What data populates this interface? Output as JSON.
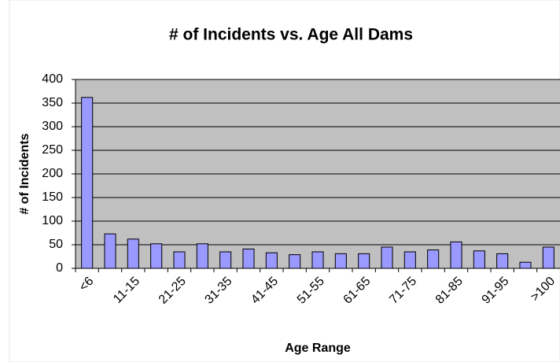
{
  "chart_data": {
    "type": "bar",
    "title": "# of Incidents vs. Age All Dams",
    "x_label": "Age Range",
    "y_label": "# of Incidents",
    "categories": [
      "<6",
      null,
      "11-15",
      null,
      "21-25",
      null,
      "31-35",
      null,
      "41-45",
      null,
      "51-55",
      null,
      "61-65",
      null,
      "71-75",
      null,
      "81-85",
      null,
      "91-95",
      null,
      ">100"
    ],
    "values": [
      362,
      73,
      62,
      52,
      35,
      52,
      35,
      41,
      33,
      29,
      35,
      31,
      31,
      45,
      35,
      39,
      56,
      37,
      31,
      13,
      45
    ],
    "color": "#9999ff",
    "ylim": [
      0,
      400
    ],
    "yticks": [
      0,
      50,
      100,
      150,
      200,
      250,
      300,
      350,
      400
    ],
    "grid": true
  }
}
